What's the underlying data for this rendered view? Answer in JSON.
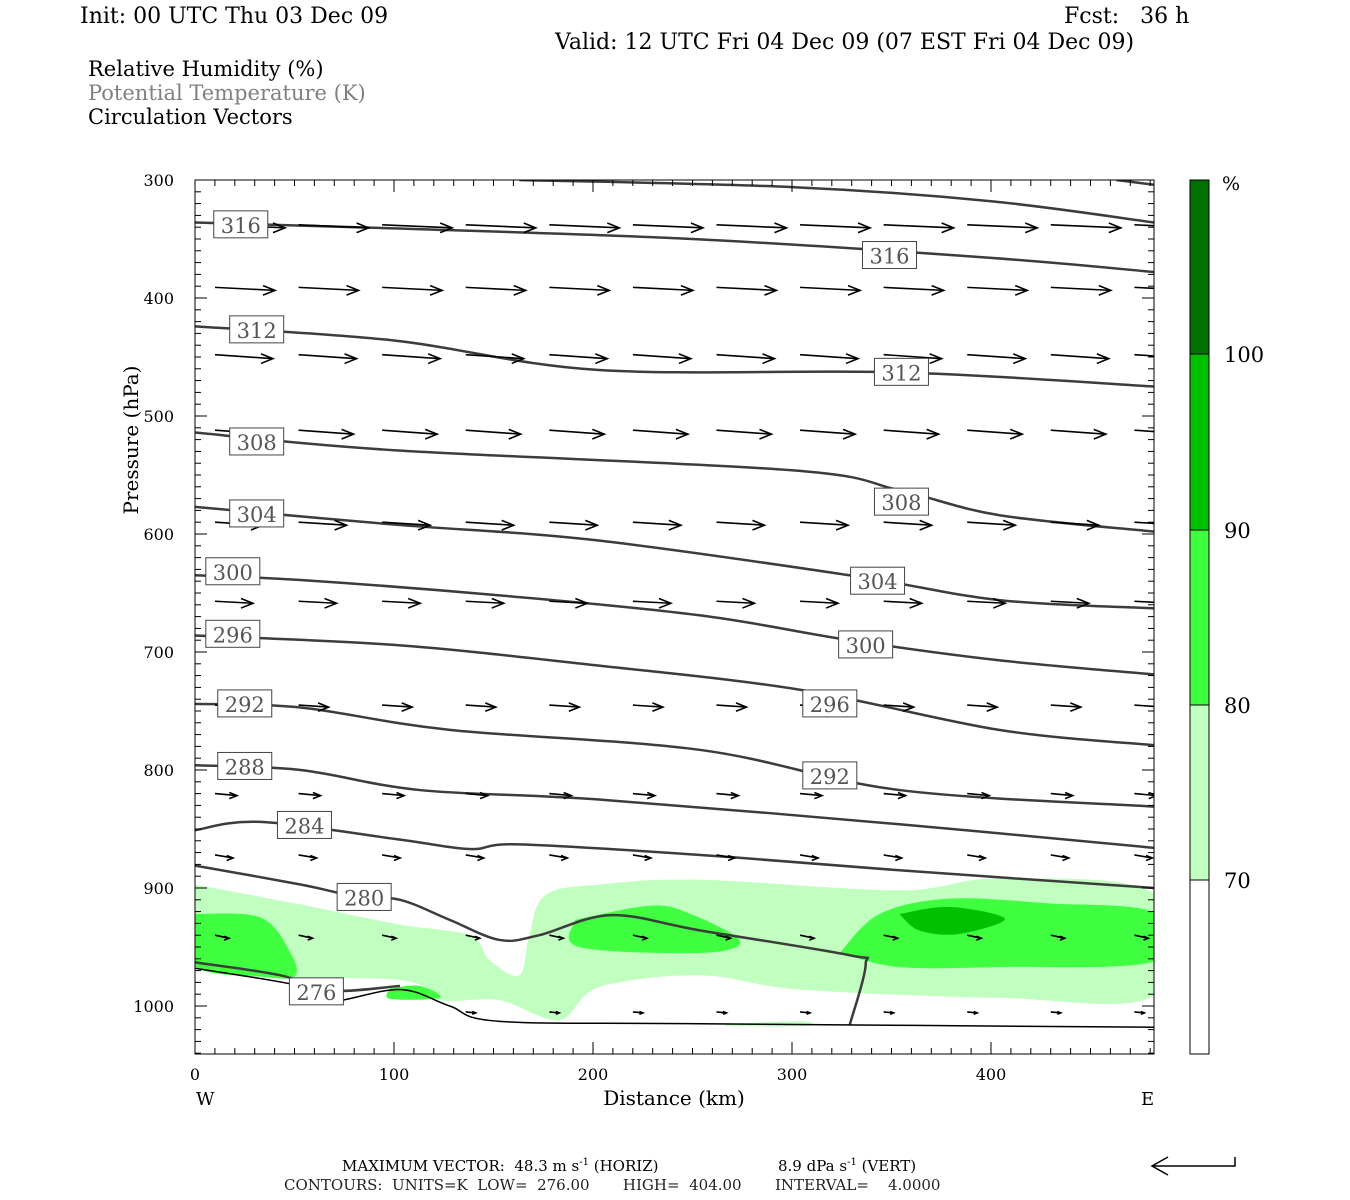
{
  "header": {
    "init": "Init: 00 UTC Thu 03 Dec 09",
    "fcst": "Fcst:   36 h",
    "valid": "Valid: 12 UTC Fri 04 Dec 09 (07 EST Fri 04 Dec 09)"
  },
  "legend": {
    "rh": "Relative Humidity (%)",
    "theta": "Potential Temperature (K)",
    "vectors": "Circulation Vectors"
  },
  "footer": {
    "max_vector": "MAXIMUM VECTOR:  48.3 m s",
    "max_vector_exp": "-1",
    "horiz": " (HORIZ)",
    "vert_val": "8.9 dPa s",
    "vert_exp": "-1",
    "vert": " (VERT)",
    "contours": "CONTOURS:  UNITS=K  LOW=  276.00       HIGH=  404.00       INTERVAL=    4.0000"
  },
  "colors": {
    "rh70": "#c0ffc0",
    "rh80": "#40ff40",
    "rh90": "#00c000",
    "rh100": "#007000",
    "contour": "#3c3c3c",
    "theta_label": "#808080"
  },
  "chart_data": {
    "type": "cross-section",
    "xlabel": "Distance (km)",
    "ylabel": "Pressure (hPa)",
    "xlim": [
      0,
      482
    ],
    "ylim": [
      1040,
      300
    ],
    "x_ticks": [
      "0",
      "100",
      "200",
      "300",
      "400"
    ],
    "x_tick_values": [
      0,
      100,
      200,
      300,
      400
    ],
    "y_ticks": [
      "300",
      "400",
      "500",
      "600",
      "700",
      "800",
      "900",
      "1000"
    ],
    "y_tick_values": [
      300,
      400,
      500,
      600,
      700,
      800,
      900,
      1000
    ],
    "west_label": "W",
    "east_label": "E",
    "colorbar": {
      "unit": "%",
      "levels": [
        "70",
        "80",
        "90",
        "100"
      ],
      "level_values": [
        70,
        80,
        90,
        100
      ]
    },
    "theta_contours": [
      {
        "value": 324,
        "points": [
          [
            463,
            300
          ],
          [
            482,
            304
          ]
        ]
      },
      {
        "value": 320,
        "points": [
          [
            163,
            300
          ],
          [
            300,
            306
          ],
          [
            400,
            318
          ],
          [
            482,
            336
          ]
        ]
      },
      {
        "value": 316,
        "label": "316",
        "labels_at": [
          [
            23,
            338
          ],
          [
            349,
            364
          ]
        ],
        "points": [
          [
            0,
            336
          ],
          [
            100,
            341
          ],
          [
            250,
            350
          ],
          [
            400,
            366
          ],
          [
            482,
            378
          ]
        ]
      },
      {
        "value": 312,
        "label": "312",
        "labels_at": [
          [
            31,
            427
          ],
          [
            355,
            463
          ]
        ],
        "points": [
          [
            0,
            424
          ],
          [
            100,
            436
          ],
          [
            203,
            461
          ],
          [
            354,
            463
          ],
          [
            482,
            475
          ]
        ]
      },
      {
        "value": 308,
        "label": "308",
        "labels_at": [
          [
            31,
            522
          ],
          [
            355,
            573
          ]
        ],
        "points": [
          [
            0,
            514
          ],
          [
            100,
            529
          ],
          [
            300,
            546
          ],
          [
            354,
            563
          ],
          [
            404,
            584
          ],
          [
            482,
            598
          ]
        ]
      },
      {
        "value": 304,
        "label": "304",
        "labels_at": [
          [
            31,
            583
          ],
          [
            343,
            640
          ]
        ],
        "points": [
          [
            0,
            577
          ],
          [
            100,
            592
          ],
          [
            200,
            605
          ],
          [
            329,
            635
          ],
          [
            404,
            656
          ],
          [
            482,
            663
          ]
        ]
      },
      {
        "value": 300,
        "label": "300",
        "labels_at": [
          [
            19,
            632
          ],
          [
            337,
            694
          ]
        ],
        "points": [
          [
            0,
            635
          ],
          [
            53,
            639
          ],
          [
            153,
            652
          ],
          [
            254,
            669
          ],
          [
            329,
            690
          ],
          [
            404,
            707
          ],
          [
            482,
            719
          ]
        ]
      },
      {
        "value": 296,
        "label": "296",
        "labels_at": [
          [
            19,
            685
          ],
          [
            319,
            744
          ]
        ],
        "points": [
          [
            0,
            686
          ],
          [
            100,
            694
          ],
          [
            200,
            711
          ],
          [
            304,
            732
          ],
          [
            404,
            766
          ],
          [
            482,
            779
          ]
        ]
      },
      {
        "value": 292,
        "label": "292",
        "labels_at": [
          [
            25,
            744
          ],
          [
            319,
            805
          ]
        ],
        "points": [
          [
            0,
            744
          ],
          [
            53,
            747
          ],
          [
            128,
            766
          ],
          [
            254,
            783
          ],
          [
            354,
            817
          ],
          [
            482,
            831
          ]
        ]
      },
      {
        "value": 288,
        "label": "288",
        "labels_at": [
          [
            25,
            797
          ]
        ],
        "points": [
          [
            0,
            796
          ],
          [
            53,
            800
          ],
          [
            113,
            817
          ],
          [
            203,
            825
          ],
          [
            354,
            846
          ],
          [
            482,
            866
          ]
        ]
      },
      {
        "value": 284,
        "label": "284",
        "labels_at": [
          [
            55,
            847
          ]
        ],
        "points": [
          [
            0,
            851
          ],
          [
            33,
            844
          ],
          [
            103,
            859
          ],
          [
            138,
            867
          ],
          [
            163,
            863
          ],
          [
            254,
            872
          ],
          [
            354,
            885
          ],
          [
            482,
            900
          ]
        ]
      },
      {
        "value": 280,
        "label": "280",
        "labels_at": [
          [
            85,
            908
          ]
        ],
        "points": [
          [
            0,
            881
          ],
          [
            53,
            897
          ],
          [
            78,
            906
          ],
          [
            103,
            910
          ],
          [
            128,
            927
          ],
          [
            153,
            944
          ],
          [
            173,
            940
          ],
          [
            209,
            923
          ],
          [
            254,
            936
          ],
          [
            329,
            957
          ],
          [
            337,
            965
          ],
          [
            329,
            1016
          ]
        ]
      },
      {
        "value": 276,
        "label": "276",
        "labels_at": [
          [
            61,
            988
          ]
        ],
        "points": [
          [
            0,
            963
          ],
          [
            43,
            974
          ],
          [
            68,
            987
          ],
          [
            103,
            983
          ]
        ]
      }
    ],
    "ground": [
      [
        0,
        968
      ],
      [
        53,
        983
      ],
      [
        68,
        996
      ],
      [
        103,
        986
      ],
      [
        128,
        1000
      ],
      [
        153,
        1013
      ],
      [
        254,
        1015
      ],
      [
        482,
        1018
      ]
    ],
    "rh_regions": [
      {
        "level": 70,
        "points": [
          [
            0,
            897
          ],
          [
            53,
            914
          ],
          [
            103,
            931
          ],
          [
            138,
            940
          ],
          [
            148,
            961
          ],
          [
            163,
            974
          ],
          [
            168,
            940
          ],
          [
            176,
            906
          ],
          [
            203,
            897
          ],
          [
            254,
            893
          ],
          [
            354,
            902
          ],
          [
            404,
            892
          ],
          [
            482,
            905
          ],
          [
            482,
            991
          ],
          [
            404,
            993
          ],
          [
            304,
            986
          ],
          [
            254,
            974
          ],
          [
            203,
            984
          ],
          [
            183,
            1012
          ],
          [
            153,
            995
          ],
          [
            123,
            995
          ],
          [
            103,
            978
          ],
          [
            0,
            968
          ]
        ]
      },
      {
        "level": 70,
        "points": [
          [
            269,
            1015
          ],
          [
            306,
            1013
          ],
          [
            306,
            1017
          ],
          [
            269,
            1017
          ]
        ]
      },
      {
        "level": 80,
        "points": [
          [
            0,
            922
          ],
          [
            33,
            925
          ],
          [
            48,
            955
          ],
          [
            50,
            975
          ],
          [
            33,
            975
          ],
          [
            0,
            966
          ]
        ]
      },
      {
        "level": 80,
        "points": [
          [
            98,
            985
          ],
          [
            113,
            983
          ],
          [
            123,
            993
          ],
          [
            98,
            994
          ]
        ]
      },
      {
        "level": 80,
        "points": [
          [
            191,
            927
          ],
          [
            229,
            915
          ],
          [
            249,
            922
          ],
          [
            274,
            945
          ],
          [
            254,
            955
          ],
          [
            193,
            950
          ]
        ]
      },
      {
        "level": 80,
        "points": [
          [
            324,
            955
          ],
          [
            344,
            922
          ],
          [
            379,
            909
          ],
          [
            429,
            913
          ],
          [
            482,
            921
          ],
          [
            482,
            962
          ],
          [
            404,
            967
          ],
          [
            354,
            967
          ]
        ]
      },
      {
        "level": 90,
        "points": [
          [
            354,
            922
          ],
          [
            379,
            916
          ],
          [
            407,
            926
          ],
          [
            384,
            939
          ],
          [
            364,
            936
          ]
        ]
      }
    ],
    "vectors": [
      {
        "p": 338,
        "len": 70,
        "tilt": 3,
        "x": [
          0,
          42,
          84,
          126,
          168,
          210,
          252,
          294,
          336,
          378,
          420,
          462
        ]
      },
      {
        "p": 391,
        "len": 60,
        "tilt": 3,
        "x": [
          0,
          42,
          84,
          126,
          168,
          210,
          252,
          294,
          336,
          378,
          420,
          462
        ]
      },
      {
        "p": 448,
        "len": 58,
        "tilt": 4,
        "x": [
          0,
          42,
          84,
          126,
          168,
          210,
          252,
          294,
          336,
          378,
          420,
          462
        ]
      },
      {
        "p": 512,
        "len": 55,
        "tilt": 4,
        "x": [
          0,
          42,
          84,
          126,
          168,
          210,
          252,
          294,
          336,
          378,
          420,
          462
        ]
      },
      {
        "p": 590,
        "len": 48,
        "tilt": 3,
        "x": [
          0,
          42,
          84,
          126,
          168,
          210,
          252,
          294,
          336,
          378,
          420,
          462
        ]
      },
      {
        "p": 657,
        "len": 38,
        "tilt": 2,
        "x": [
          0,
          42,
          84,
          126,
          168,
          210,
          252,
          294,
          336,
          378,
          420,
          462
        ]
      },
      {
        "p": 745,
        "len": 30,
        "tilt": 2,
        "x": [
          0,
          42,
          84,
          126,
          168,
          210,
          252,
          294,
          336,
          378,
          420,
          462
        ]
      },
      {
        "p": 820,
        "len": 22,
        "tilt": 2,
        "x": [
          0,
          42,
          84,
          126,
          168,
          210,
          252,
          294,
          336,
          378,
          420,
          462
        ]
      },
      {
        "p": 872,
        "len": 18,
        "tilt": 3,
        "x": [
          0,
          42,
          84,
          126,
          168,
          210,
          252,
          294,
          336,
          378,
          420,
          462
        ]
      },
      {
        "p": 940,
        "len": 14,
        "tilt": 3,
        "x": [
          0,
          42,
          84,
          126,
          168,
          210,
          252,
          294,
          336,
          378,
          420,
          462
        ]
      },
      {
        "p": 1005,
        "len": 10,
        "tilt": 1,
        "x": [
          126,
          168,
          210,
          252,
          294,
          336,
          378,
          420,
          462
        ]
      }
    ]
  }
}
